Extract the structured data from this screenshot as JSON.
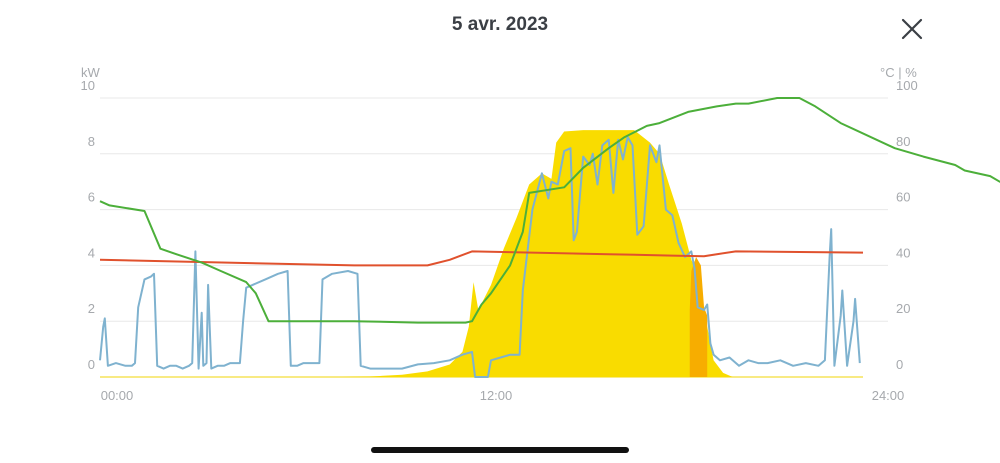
{
  "header": {
    "title": "5 avr. 2023",
    "close_icon": "close-icon"
  },
  "chart_data": {
    "type": "line",
    "xlabel": "",
    "ylabel_left": "kW",
    "ylabel_right": "°C | %",
    "x_ticks": [
      "00:00",
      "12:00",
      "24:00"
    ],
    "x_range_hours": [
      0,
      24
    ],
    "y_left_range": [
      0,
      10
    ],
    "y_left_ticks": [
      "10",
      "8",
      "6",
      "4",
      "2",
      "0"
    ],
    "y_right_range": [
      0,
      100
    ],
    "y_right_ticks": [
      "100",
      "80",
      "60",
      "40",
      "20",
      "0"
    ],
    "grid": true,
    "colors": {
      "solar": "#f9dc00",
      "solar_excess": "#f7ad00",
      "consumption": "#7fb2cf",
      "temperature": "#e0512d",
      "battery": "#4caf3a",
      "grid": "#e8e8e8",
      "baseline": "#f5e35a"
    },
    "series": [
      {
        "key": "solar",
        "kind": "area",
        "axis": "left",
        "points": [
          [
            7.6,
            0
          ],
          [
            8.5,
            0.02
          ],
          [
            9.5,
            0.08
          ],
          [
            10.3,
            0.2
          ],
          [
            11.0,
            0.45
          ],
          [
            11.4,
            0.9
          ],
          [
            11.6,
            1.8
          ],
          [
            11.75,
            3.4
          ],
          [
            11.9,
            2.4
          ],
          [
            12.3,
            3.3
          ],
          [
            12.7,
            4.6
          ],
          [
            13.1,
            5.7
          ],
          [
            13.5,
            6.9
          ],
          [
            13.9,
            7.3
          ],
          [
            14.2,
            7.1
          ],
          [
            14.35,
            8.4
          ],
          [
            14.6,
            8.8
          ],
          [
            15.2,
            8.85
          ],
          [
            16.0,
            8.85
          ],
          [
            16.8,
            8.85
          ],
          [
            17.3,
            8.4
          ],
          [
            17.6,
            8.0
          ],
          [
            17.9,
            6.9
          ],
          [
            18.3,
            5.5
          ],
          [
            18.6,
            4.2
          ],
          [
            18.8,
            3.8
          ],
          [
            19.0,
            2.4
          ],
          [
            19.3,
            0.6
          ],
          [
            19.6,
            0.15
          ],
          [
            19.9,
            0.0
          ]
        ]
      },
      {
        "key": "solar_excess",
        "kind": "area",
        "axis": "left",
        "points": [
          [
            18.55,
            2.4
          ],
          [
            18.6,
            3.8
          ],
          [
            18.75,
            4.3
          ],
          [
            18.9,
            4.0
          ],
          [
            19.0,
            2.5
          ],
          [
            19.1,
            2.2
          ]
        ]
      },
      {
        "key": "consumption",
        "kind": "line",
        "axis": "left",
        "points": [
          [
            0,
            0.6
          ],
          [
            0.1,
            1.8
          ],
          [
            0.15,
            2.1
          ],
          [
            0.25,
            0.4
          ],
          [
            0.5,
            0.5
          ],
          [
            0.8,
            0.4
          ],
          [
            1.0,
            0.4
          ],
          [
            1.1,
            0.5
          ],
          [
            1.2,
            2.5
          ],
          [
            1.4,
            3.5
          ],
          [
            1.6,
            3.6
          ],
          [
            1.7,
            3.7
          ],
          [
            1.8,
            0.4
          ],
          [
            2.0,
            0.3
          ],
          [
            2.2,
            0.4
          ],
          [
            2.4,
            0.4
          ],
          [
            2.6,
            0.3
          ],
          [
            2.8,
            0.4
          ],
          [
            2.9,
            0.5
          ],
          [
            3.0,
            4.5
          ],
          [
            3.1,
            0.3
          ],
          [
            3.2,
            2.3
          ],
          [
            3.25,
            0.4
          ],
          [
            3.35,
            0.5
          ],
          [
            3.4,
            3.3
          ],
          [
            3.5,
            0.3
          ],
          [
            3.7,
            0.4
          ],
          [
            3.9,
            0.4
          ],
          [
            4.1,
            0.5
          ],
          [
            4.3,
            0.5
          ],
          [
            4.4,
            0.5
          ],
          [
            4.5,
            2.0
          ],
          [
            4.6,
            3.2
          ],
          [
            4.8,
            3.3
          ],
          [
            5.2,
            3.5
          ],
          [
            5.6,
            3.7
          ],
          [
            5.9,
            3.8
          ],
          [
            6.0,
            0.4
          ],
          [
            6.2,
            0.4
          ],
          [
            6.4,
            0.5
          ],
          [
            6.6,
            0.5
          ],
          [
            6.8,
            0.5
          ],
          [
            6.9,
            0.5
          ],
          [
            7.0,
            3.5
          ],
          [
            7.3,
            3.7
          ],
          [
            7.8,
            3.8
          ],
          [
            8.1,
            3.7
          ],
          [
            8.2,
            0.4
          ],
          [
            8.5,
            0.3
          ],
          [
            9.0,
            0.3
          ],
          [
            9.5,
            0.3
          ],
          [
            10.0,
            0.45
          ],
          [
            10.5,
            0.5
          ],
          [
            11.0,
            0.6
          ],
          [
            11.4,
            0.8
          ],
          [
            11.7,
            0.9
          ],
          [
            11.8,
            0.0
          ],
          [
            12.2,
            0.0
          ],
          [
            12.3,
            0.6
          ],
          [
            12.6,
            0.7
          ],
          [
            12.9,
            0.8
          ],
          [
            13.2,
            0.8
          ],
          [
            13.3,
            3.1
          ],
          [
            13.6,
            6.0
          ],
          [
            13.9,
            7.3
          ],
          [
            14.1,
            6.4
          ],
          [
            14.2,
            7.0
          ],
          [
            14.4,
            6.9
          ],
          [
            14.6,
            8.1
          ],
          [
            14.8,
            8.2
          ],
          [
            14.9,
            4.9
          ],
          [
            15.0,
            5.2
          ],
          [
            15.2,
            7.9
          ],
          [
            15.4,
            7.6
          ],
          [
            15.5,
            8.0
          ],
          [
            15.65,
            6.9
          ],
          [
            15.8,
            8.3
          ],
          [
            16.0,
            8.5
          ],
          [
            16.15,
            6.6
          ],
          [
            16.3,
            8.5
          ],
          [
            16.45,
            7.8
          ],
          [
            16.6,
            8.6
          ],
          [
            16.75,
            8.3
          ],
          [
            16.9,
            5.1
          ],
          [
            17.1,
            5.4
          ],
          [
            17.3,
            8.3
          ],
          [
            17.5,
            7.7
          ],
          [
            17.6,
            8.3
          ],
          [
            17.8,
            6.0
          ],
          [
            18.0,
            5.8
          ],
          [
            18.2,
            4.8
          ],
          [
            18.4,
            4.3
          ],
          [
            18.6,
            4.5
          ],
          [
            18.7,
            3.9
          ],
          [
            18.8,
            2.5
          ],
          [
            19.0,
            2.4
          ],
          [
            19.1,
            2.6
          ],
          [
            19.2,
            1.2
          ],
          [
            19.3,
            0.8
          ],
          [
            19.5,
            0.6
          ],
          [
            19.8,
            0.7
          ],
          [
            20.1,
            0.4
          ],
          [
            20.4,
            0.6
          ],
          [
            20.7,
            0.5
          ],
          [
            21.0,
            0.5
          ],
          [
            21.4,
            0.6
          ],
          [
            21.8,
            0.4
          ],
          [
            22.2,
            0.5
          ],
          [
            22.6,
            0.4
          ],
          [
            22.8,
            0.6
          ],
          [
            22.95,
            4.3
          ],
          [
            23.0,
            5.3
          ],
          [
            23.1,
            0.4
          ],
          [
            23.3,
            2.2
          ],
          [
            23.35,
            3.1
          ],
          [
            23.5,
            0.4
          ],
          [
            23.7,
            2.0
          ],
          [
            23.75,
            2.8
          ],
          [
            23.9,
            0.5
          ]
        ]
      },
      {
        "key": "temperature",
        "kind": "line",
        "axis": "right",
        "points": [
          [
            0,
            42
          ],
          [
            4,
            41
          ],
          [
            8,
            40
          ],
          [
            10.3,
            40
          ],
          [
            11,
            42
          ],
          [
            11.7,
            45
          ],
          [
            16,
            44
          ],
          [
            18,
            43.5
          ],
          [
            19,
            43.3
          ],
          [
            19.4,
            44
          ],
          [
            20,
            45
          ],
          [
            24,
            44.6
          ]
        ]
      },
      {
        "key": "battery",
        "kind": "line",
        "axis": "right",
        "points": [
          [
            0,
            63
          ],
          [
            0.3,
            61.5
          ],
          [
            1.4,
            59.5
          ],
          [
            1.9,
            46
          ],
          [
            2.4,
            44
          ],
          [
            3.2,
            41
          ],
          [
            3.8,
            38
          ],
          [
            4.6,
            34
          ],
          [
            4.9,
            30
          ],
          [
            5.3,
            20
          ],
          [
            8,
            20
          ],
          [
            10,
            19.5
          ],
          [
            11.5,
            19.5
          ],
          [
            11.7,
            20
          ],
          [
            12.0,
            26
          ],
          [
            12.3,
            30
          ],
          [
            12.9,
            40
          ],
          [
            13.3,
            52
          ],
          [
            13.5,
            66
          ],
          [
            14.6,
            68
          ],
          [
            15.2,
            75
          ],
          [
            16.0,
            82
          ],
          [
            16.5,
            86
          ],
          [
            17.2,
            90
          ],
          [
            17.6,
            91
          ],
          [
            18.5,
            95
          ],
          [
            19.4,
            97
          ],
          [
            20.0,
            98
          ],
          [
            20.4,
            98
          ],
          [
            21.3,
            100
          ],
          [
            22.0,
            100
          ],
          [
            22.5,
            97
          ],
          [
            23.3,
            91
          ],
          [
            25.0,
            82
          ],
          [
            25.9,
            79
          ],
          [
            26.9,
            76
          ],
          [
            27.2,
            74
          ],
          [
            28.0,
            72
          ],
          [
            28.3,
            70
          ],
          [
            28.5,
            70
          ]
        ]
      }
    ]
  }
}
